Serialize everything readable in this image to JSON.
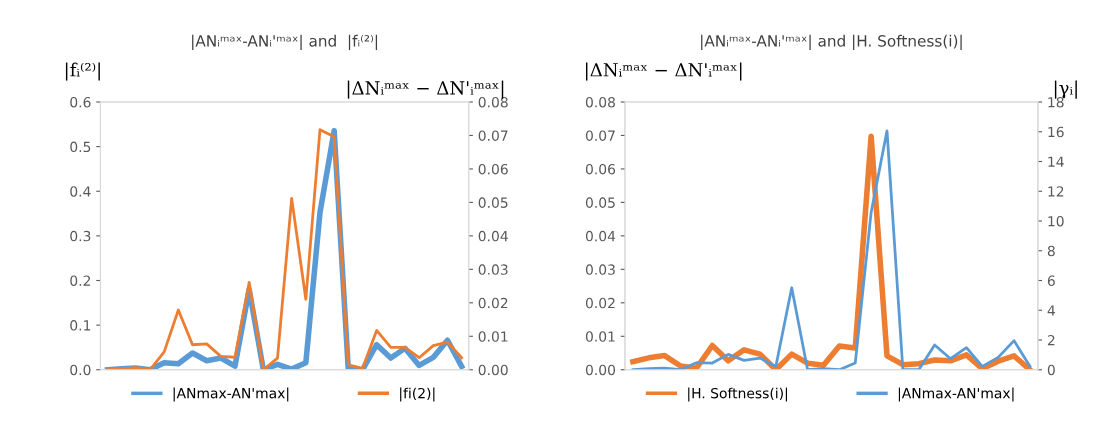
{
  "chart_data": [
    {
      "type": "line",
      "title": "|ANᵢᵐᵃˣ-ANᵢ'ᵐᵃˣ| and  |fᵢ⁽²⁾|",
      "ylabel": "|fᵢ⁽²⁾|",
      "y2label": "|ΔNᵢᵐᵃˣ − ΔN'ᵢᵐᵃˣ|",
      "categories": [
        null,
        null,
        null,
        null,
        null,
        null,
        null,
        null,
        null,
        null,
        null,
        null,
        null,
        null,
        null,
        null,
        null,
        null,
        null,
        null,
        null,
        null,
        null,
        null,
        null,
        null
      ],
      "series": [
        {
          "name": "|ANmax-AN'max|",
          "color": "#5b9bd5",
          "axis": "y2",
          "values": [
            0,
            0.0003,
            0.0005,
            0,
            0.0021,
            0.0018,
            0.005,
            0.0027,
            0.0035,
            0.0011,
            0.024,
            0,
            0.0016,
            0.0002,
            0.0021,
            0.047,
            0.0714,
            0,
            0,
            0.0075,
            0.0035,
            0.0064,
            0.0013,
            0.0037,
            0.0088,
            0.001
          ]
        },
        {
          "name": "|fi(2)|",
          "color": "#ed7d31",
          "axis": "y",
          "values": [
            0,
            0.002,
            0.005,
            0,
            0.04,
            0.134,
            0.056,
            0.058,
            0.03,
            0.028,
            0.196,
            0,
            0.026,
            0.384,
            0.158,
            0.538,
            0.522,
            0.011,
            0.003,
            0.088,
            0.05,
            0.05,
            0.027,
            0.054,
            0.062,
            0.027
          ]
        }
      ],
      "ylim": [
        0,
        0.6
      ],
      "yticks": [
        {
          "value": 0,
          "label": "0.0"
        },
        {
          "value": 0.1,
          "label": "0.1"
        },
        {
          "value": 0.2,
          "label": "0.2"
        },
        {
          "value": 0.3,
          "label": "0.3"
        },
        {
          "value": 0.4,
          "label": "0.4"
        },
        {
          "value": 0.5,
          "label": "0.5"
        },
        {
          "value": 0.6,
          "label": "0.6"
        }
      ],
      "y2lim": [
        0,
        0.08
      ],
      "y2ticks": [
        {
          "value": 0,
          "label": "0.00"
        },
        0.01,
        0.02,
        0.03,
        0.04,
        0.05,
        0.06,
        0.07,
        0.08
      ],
      "legend": "bottom",
      "grid": false
    },
    {
      "type": "line",
      "title": "|ANᵢᵐᵃˣ-ANᵢ'ᵐᵃˣ| and |H. Softness(i)|",
      "ylabel": "|ΔNᵢᵐᵃˣ − ΔN'ᵢᵐᵃˣ|",
      "y2label": "|γᵢ|",
      "categories": [
        null,
        null,
        null,
        null,
        null,
        null,
        null,
        null,
        null,
        null,
        null,
        null,
        null,
        null,
        null,
        null,
        null,
        null,
        null,
        null,
        null,
        null,
        null,
        null,
        null,
        null
      ],
      "series": [
        {
          "name": "|H. Softness(i)|",
          "color": "#ed7d31",
          "axis": "y2",
          "values": [
            0.54,
            0.8,
            0.95,
            0.25,
            0.1,
            1.63,
            0.6,
            1.34,
            1.05,
            0,
            1.05,
            0.44,
            0.3,
            1.6,
            1.46,
            15.7,
            0.93,
            0.34,
            0.41,
            0.66,
            0.6,
            1.0,
            0.07,
            0.58,
            0.93,
            0
          ]
        },
        {
          "name": "|ANmax-AN'max|",
          "color": "#5b9bd5",
          "axis": "y",
          "values": [
            0,
            0.0003,
            0.0005,
            0,
            0.0021,
            0.002,
            0.0046,
            0.0028,
            0.0035,
            0.001,
            0.0245,
            0,
            0.0003,
            0,
            0.002,
            0.047,
            0.0714,
            0,
            0,
            0.0074,
            0.0033,
            0.0066,
            0.001,
            0.0037,
            0.0087,
            0.001
          ]
        }
      ],
      "ylim": [
        0,
        0.08
      ],
      "yticks": [
        {
          "value": 0,
          "label": "0.00"
        },
        0.01,
        0.02,
        0.03,
        0.04,
        0.05,
        0.06,
        0.07,
        0.08
      ],
      "y2lim": [
        0,
        18
      ],
      "y2ticks": [
        0,
        2,
        4,
        6,
        8,
        10,
        12,
        14,
        16,
        18
      ],
      "legend": "bottom",
      "grid": false
    }
  ]
}
